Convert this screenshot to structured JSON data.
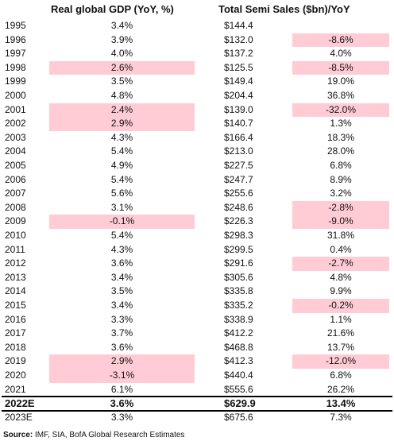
{
  "table": {
    "headers": [
      "Real global GDP (YoY, %)",
      "Total Semi Sales ($bn)/YoY"
    ],
    "highlight_color": "#ffccd5",
    "bold_row": "2022E",
    "rows": [
      [
        "1995",
        "3.4%",
        "$144.4",
        ""
      ],
      [
        "1996",
        "3.9%",
        "$132.0",
        "-8.6%"
      ],
      [
        "1997",
        "4.0%",
        "$137.2",
        "4.0%"
      ],
      [
        "1998",
        "2.6%",
        "$125.5",
        "-8.5%"
      ],
      [
        "1999",
        "3.5%",
        "$149.4",
        "19.0%"
      ],
      [
        "2000",
        "4.8%",
        "$204.4",
        "36.8%"
      ],
      [
        "2001",
        "2.4%",
        "$139.0",
        "-32.0%"
      ],
      [
        "2002",
        "2.9%",
        "$140.7",
        "1.3%"
      ],
      [
        "2003",
        "4.3%",
        "$166.4",
        "18.3%"
      ],
      [
        "2004",
        "5.4%",
        "$213.0",
        "28.0%"
      ],
      [
        "2005",
        "4.9%",
        "$227.5",
        "6.8%"
      ],
      [
        "2006",
        "5.4%",
        "$247.7",
        "8.9%"
      ],
      [
        "2007",
        "5.6%",
        "$255.6",
        "3.2%"
      ],
      [
        "2008",
        "3.1%",
        "$248.6",
        "-2.8%"
      ],
      [
        "2009",
        "-0.1%",
        "$226.3",
        "-9.0%"
      ],
      [
        "2010",
        "5.4%",
        "$298.3",
        "31.8%"
      ],
      [
        "2011",
        "4.3%",
        "$299.5",
        "0.4%"
      ],
      [
        "2012",
        "3.6%",
        "$291.6",
        "-2.7%"
      ],
      [
        "2013",
        "3.4%",
        "$305.6",
        "4.8%"
      ],
      [
        "2014",
        "3.5%",
        "$335.8",
        "9.9%"
      ],
      [
        "2015",
        "3.4%",
        "$335.2",
        "-0.2%"
      ],
      [
        "2016",
        "3.3%",
        "$338.9",
        "1.1%"
      ],
      [
        "2017",
        "3.7%",
        "$412.2",
        "21.6%"
      ],
      [
        "2018",
        "3.6%",
        "$468.8",
        "13.7%"
      ],
      [
        "2019",
        "2.9%",
        "$412.3",
        "-12.0%"
      ],
      [
        "2020",
        "-3.1%",
        "$440.4",
        "6.8%"
      ],
      [
        "2021",
        "6.1%",
        "$555.6",
        "26.2%"
      ],
      [
        "2022E",
        "3.6%",
        "$629.9",
        "13.4%"
      ],
      [
        "2023E",
        "3.3%",
        "$675.6",
        "7.3%"
      ]
    ],
    "highlight": [
      [
        false,
        false
      ],
      [
        false,
        true
      ],
      [
        false,
        false
      ],
      [
        true,
        true
      ],
      [
        false,
        false
      ],
      [
        false,
        false
      ],
      [
        true,
        true
      ],
      [
        true,
        false
      ],
      [
        false,
        false
      ],
      [
        false,
        false
      ],
      [
        false,
        false
      ],
      [
        false,
        false
      ],
      [
        false,
        false
      ],
      [
        false,
        true
      ],
      [
        true,
        true
      ],
      [
        false,
        false
      ],
      [
        false,
        false
      ],
      [
        false,
        true
      ],
      [
        false,
        false
      ],
      [
        false,
        false
      ],
      [
        false,
        true
      ],
      [
        false,
        false
      ],
      [
        false,
        false
      ],
      [
        false,
        false
      ],
      [
        true,
        true
      ],
      [
        true,
        false
      ],
      [
        false,
        false
      ],
      [
        false,
        false
      ],
      [
        false,
        false
      ]
    ]
  },
  "source": {
    "label": "Source:",
    "text": "IMF, SIA, BofA Global Research Estimates"
  }
}
